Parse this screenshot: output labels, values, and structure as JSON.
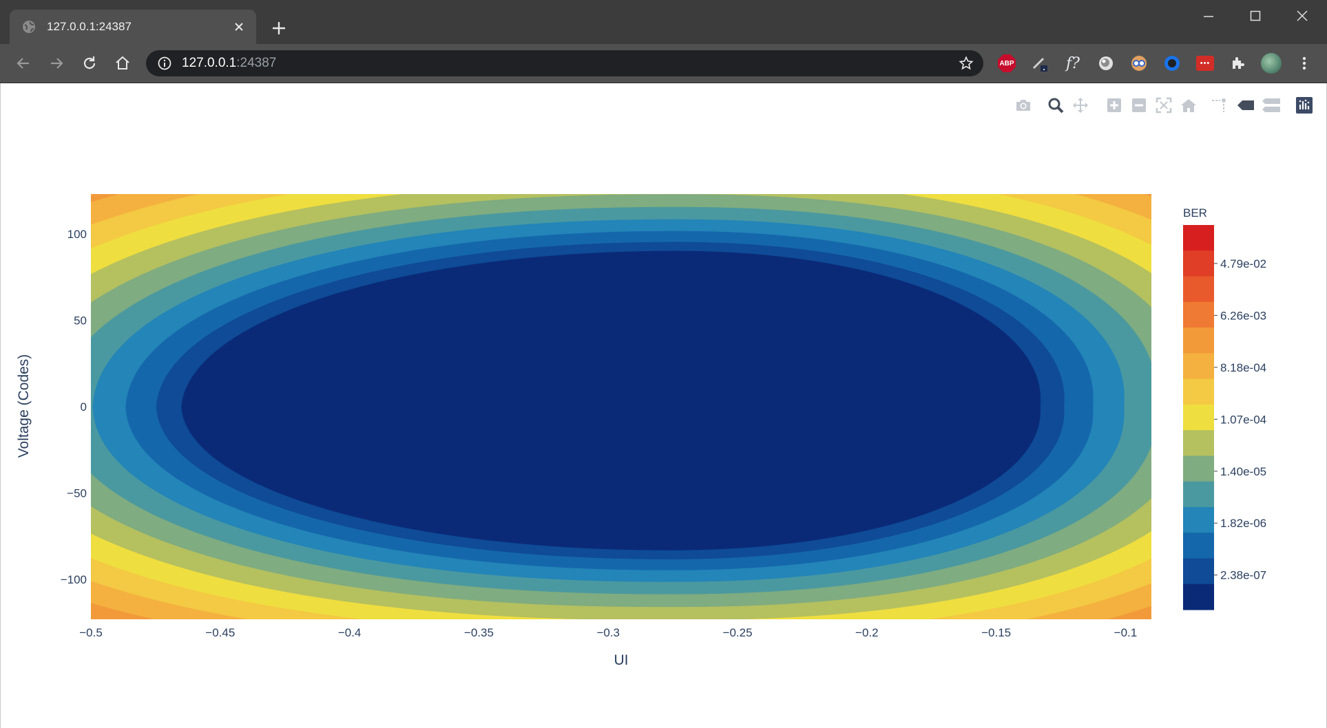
{
  "browser": {
    "tab_title": "127.0.0.1:24387",
    "url_host": "127.0.0.1",
    "url_port": ":24387",
    "extensions": [
      {
        "name": "adblock-plus-icon",
        "label": "ABP"
      },
      {
        "name": "pen-extension-icon"
      },
      {
        "name": "function-extension-icon",
        "label": "f?"
      },
      {
        "name": "disc-extension-icon"
      },
      {
        "name": "goggles-extension-icon"
      },
      {
        "name": "ring-extension-icon"
      },
      {
        "name": "lastpass-icon",
        "label": "•••"
      },
      {
        "name": "puzzle-extensions-icon"
      }
    ]
  },
  "modebar": [
    {
      "name": "camera-icon",
      "active": false
    },
    {
      "name": "zoom-icon",
      "active": true
    },
    {
      "name": "pan-icon",
      "active": false
    },
    {
      "name": "zoom-in-icon",
      "active": false
    },
    {
      "name": "zoom-out-icon",
      "active": false
    },
    {
      "name": "autoscale-icon",
      "active": false
    },
    {
      "name": "reset-axes-icon",
      "active": false
    },
    {
      "name": "spike-lines-icon",
      "active": false
    },
    {
      "name": "hover-closest-icon",
      "active": false
    },
    {
      "name": "hover-compare-icon",
      "active": false
    },
    {
      "name": "plotly-logo-icon",
      "active": false
    }
  ],
  "chart_data": {
    "type": "contour",
    "xlabel": "UI",
    "ylabel": "Voltage (Codes)",
    "xlim": [
      -0.5,
      -0.09
    ],
    "ylim": [
      -123,
      123
    ],
    "x_ticks": [
      -0.5,
      -0.45,
      -0.4,
      -0.35,
      -0.3,
      -0.25,
      -0.2,
      -0.15,
      -0.1
    ],
    "x_tick_labels": [
      "−0.5",
      "−0.45",
      "−0.4",
      "−0.35",
      "−0.3",
      "−0.25",
      "−0.2",
      "−0.15",
      "−0.1"
    ],
    "y_ticks": [
      100,
      50,
      0,
      -50,
      -100
    ],
    "y_tick_labels": [
      "100",
      "50",
      "0",
      "−50",
      "−100"
    ],
    "eye_center": {
      "x": -0.28,
      "y": 0
    },
    "eye_opening": {
      "x_left": -0.465,
      "x_right": -0.133,
      "y_top": 90,
      "y_bottom": -83
    },
    "colorbar": {
      "title": "BER",
      "tick_labels": [
        "4.79e-02",
        "6.26e-03",
        "8.18e-04",
        "1.07e-04",
        "1.40e-05",
        "1.82e-06",
        "2.38e-07"
      ],
      "levels_top_to_bottom": [
        "#d81f1f",
        "#e03e26",
        "#e85a2c",
        "#ef7a33",
        "#f29a3a",
        "#f4b13f",
        "#f4c943",
        "#efde3f",
        "#b5c05f",
        "#7fac80",
        "#4b99a0",
        "#2385b8",
        "#1567ab",
        "#0f4b96",
        "#0a2a78"
      ]
    }
  }
}
